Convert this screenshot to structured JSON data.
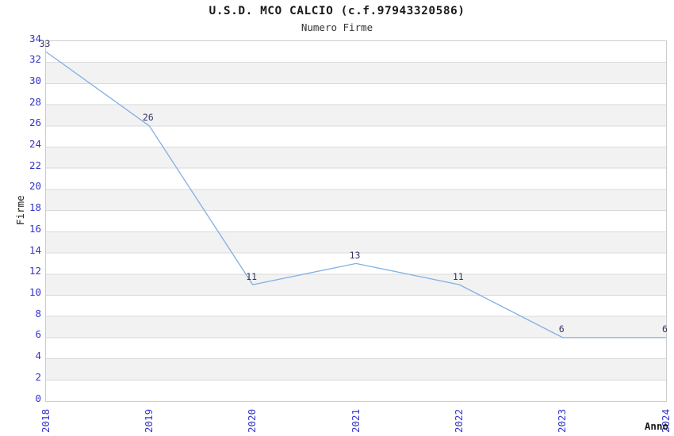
{
  "chart_data": {
    "type": "line",
    "title": "U.S.D. MCO CALCIO (c.f.97943320586)",
    "subtitle": "Numero Firme",
    "xlabel": "Anno",
    "ylabel": "Firme",
    "x": [
      "2018",
      "2019",
      "2020",
      "2021",
      "2022",
      "2023",
      "2024"
    ],
    "values": [
      33,
      26,
      11,
      13,
      11,
      6,
      6
    ],
    "series": [
      {
        "name": "Numero Firme",
        "values": [
          33,
          26,
          11,
          13,
          11,
          6,
          6
        ]
      }
    ],
    "ylim": [
      0,
      34
    ],
    "yticks": [
      0,
      2,
      4,
      6,
      8,
      10,
      12,
      14,
      16,
      18,
      20,
      22,
      24,
      26,
      28,
      30,
      32,
      34
    ],
    "grid": true,
    "legend": false,
    "background_bands": "alternating horizontal bands every 2 units",
    "colors": {
      "line": "#7fb0e2",
      "tick_text": "#3333cc",
      "point_label_text": "#333366",
      "band_main": "#ffffff",
      "band_alt": "#f2f2f2",
      "gridline": "#d9d9d9",
      "plot_border": "#cccccc",
      "title_text": "#1a1a1a",
      "subtitle_text": "#333333",
      "axis_title_text": "#1a1a1a"
    }
  }
}
